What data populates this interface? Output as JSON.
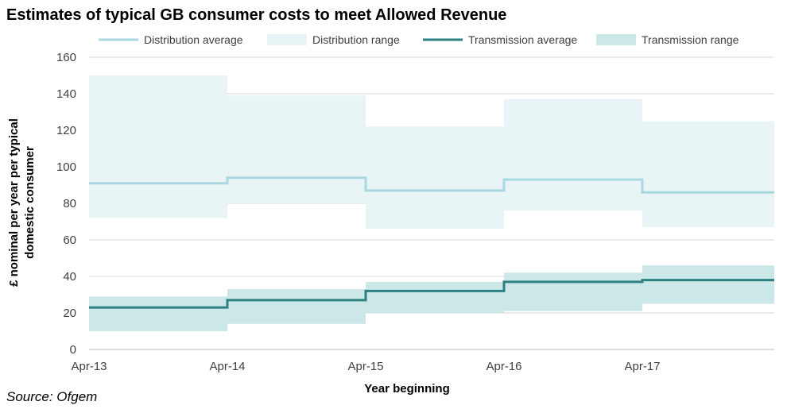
{
  "chart_data": {
    "type": "step-area-line",
    "title": "Estimates of typical GB consumer costs to meet Allowed Revenue",
    "xlabel": "Year beginning",
    "ylabel": "£ nominal per year per typical domestic consumer",
    "ylabel_lines": [
      "£ nominal per year per typical",
      "domestic consumer"
    ],
    "ylim": [
      0,
      160
    ],
    "yticks": [
      0,
      20,
      40,
      60,
      80,
      100,
      120,
      140,
      160
    ],
    "xticks": [
      "Apr-13",
      "Apr-14",
      "Apr-15",
      "Apr-16",
      "Apr-17"
    ],
    "periods": [
      "Apr-13",
      "Apr-14",
      "Apr-15",
      "Apr-16",
      "Apr-17"
    ],
    "grid": "horizontal",
    "legend_position": "top",
    "series": [
      {
        "name": "Distribution range",
        "kind": "range",
        "low": [
          72,
          80,
          66,
          76,
          67
        ],
        "high": [
          150,
          139,
          122,
          137,
          125
        ],
        "color": "#e8f4f6"
      },
      {
        "name": "Transmission range",
        "kind": "range",
        "low": [
          10,
          14,
          20,
          21,
          25
        ],
        "high": [
          29,
          33,
          37,
          42,
          46
        ],
        "color": "#cbe7e8"
      },
      {
        "name": "Distribution average",
        "kind": "line",
        "values": [
          91,
          94,
          87,
          93,
          86
        ],
        "color": "#a9d8e0"
      },
      {
        "name": "Transmission average",
        "kind": "line",
        "values": [
          23,
          27,
          32,
          37,
          38
        ],
        "color": "#2e7f7f"
      }
    ],
    "legend": [
      {
        "name": "Distribution average",
        "kind": "line",
        "color": "#a9d8e0"
      },
      {
        "name": "Distribution range",
        "kind": "range",
        "color": "#e8f4f6"
      },
      {
        "name": "Transmission average",
        "kind": "line",
        "color": "#2e7f7f"
      },
      {
        "name": "Transmission range",
        "kind": "range",
        "color": "#cbe7e8"
      }
    ]
  },
  "source_note": "Source: Ofgem"
}
